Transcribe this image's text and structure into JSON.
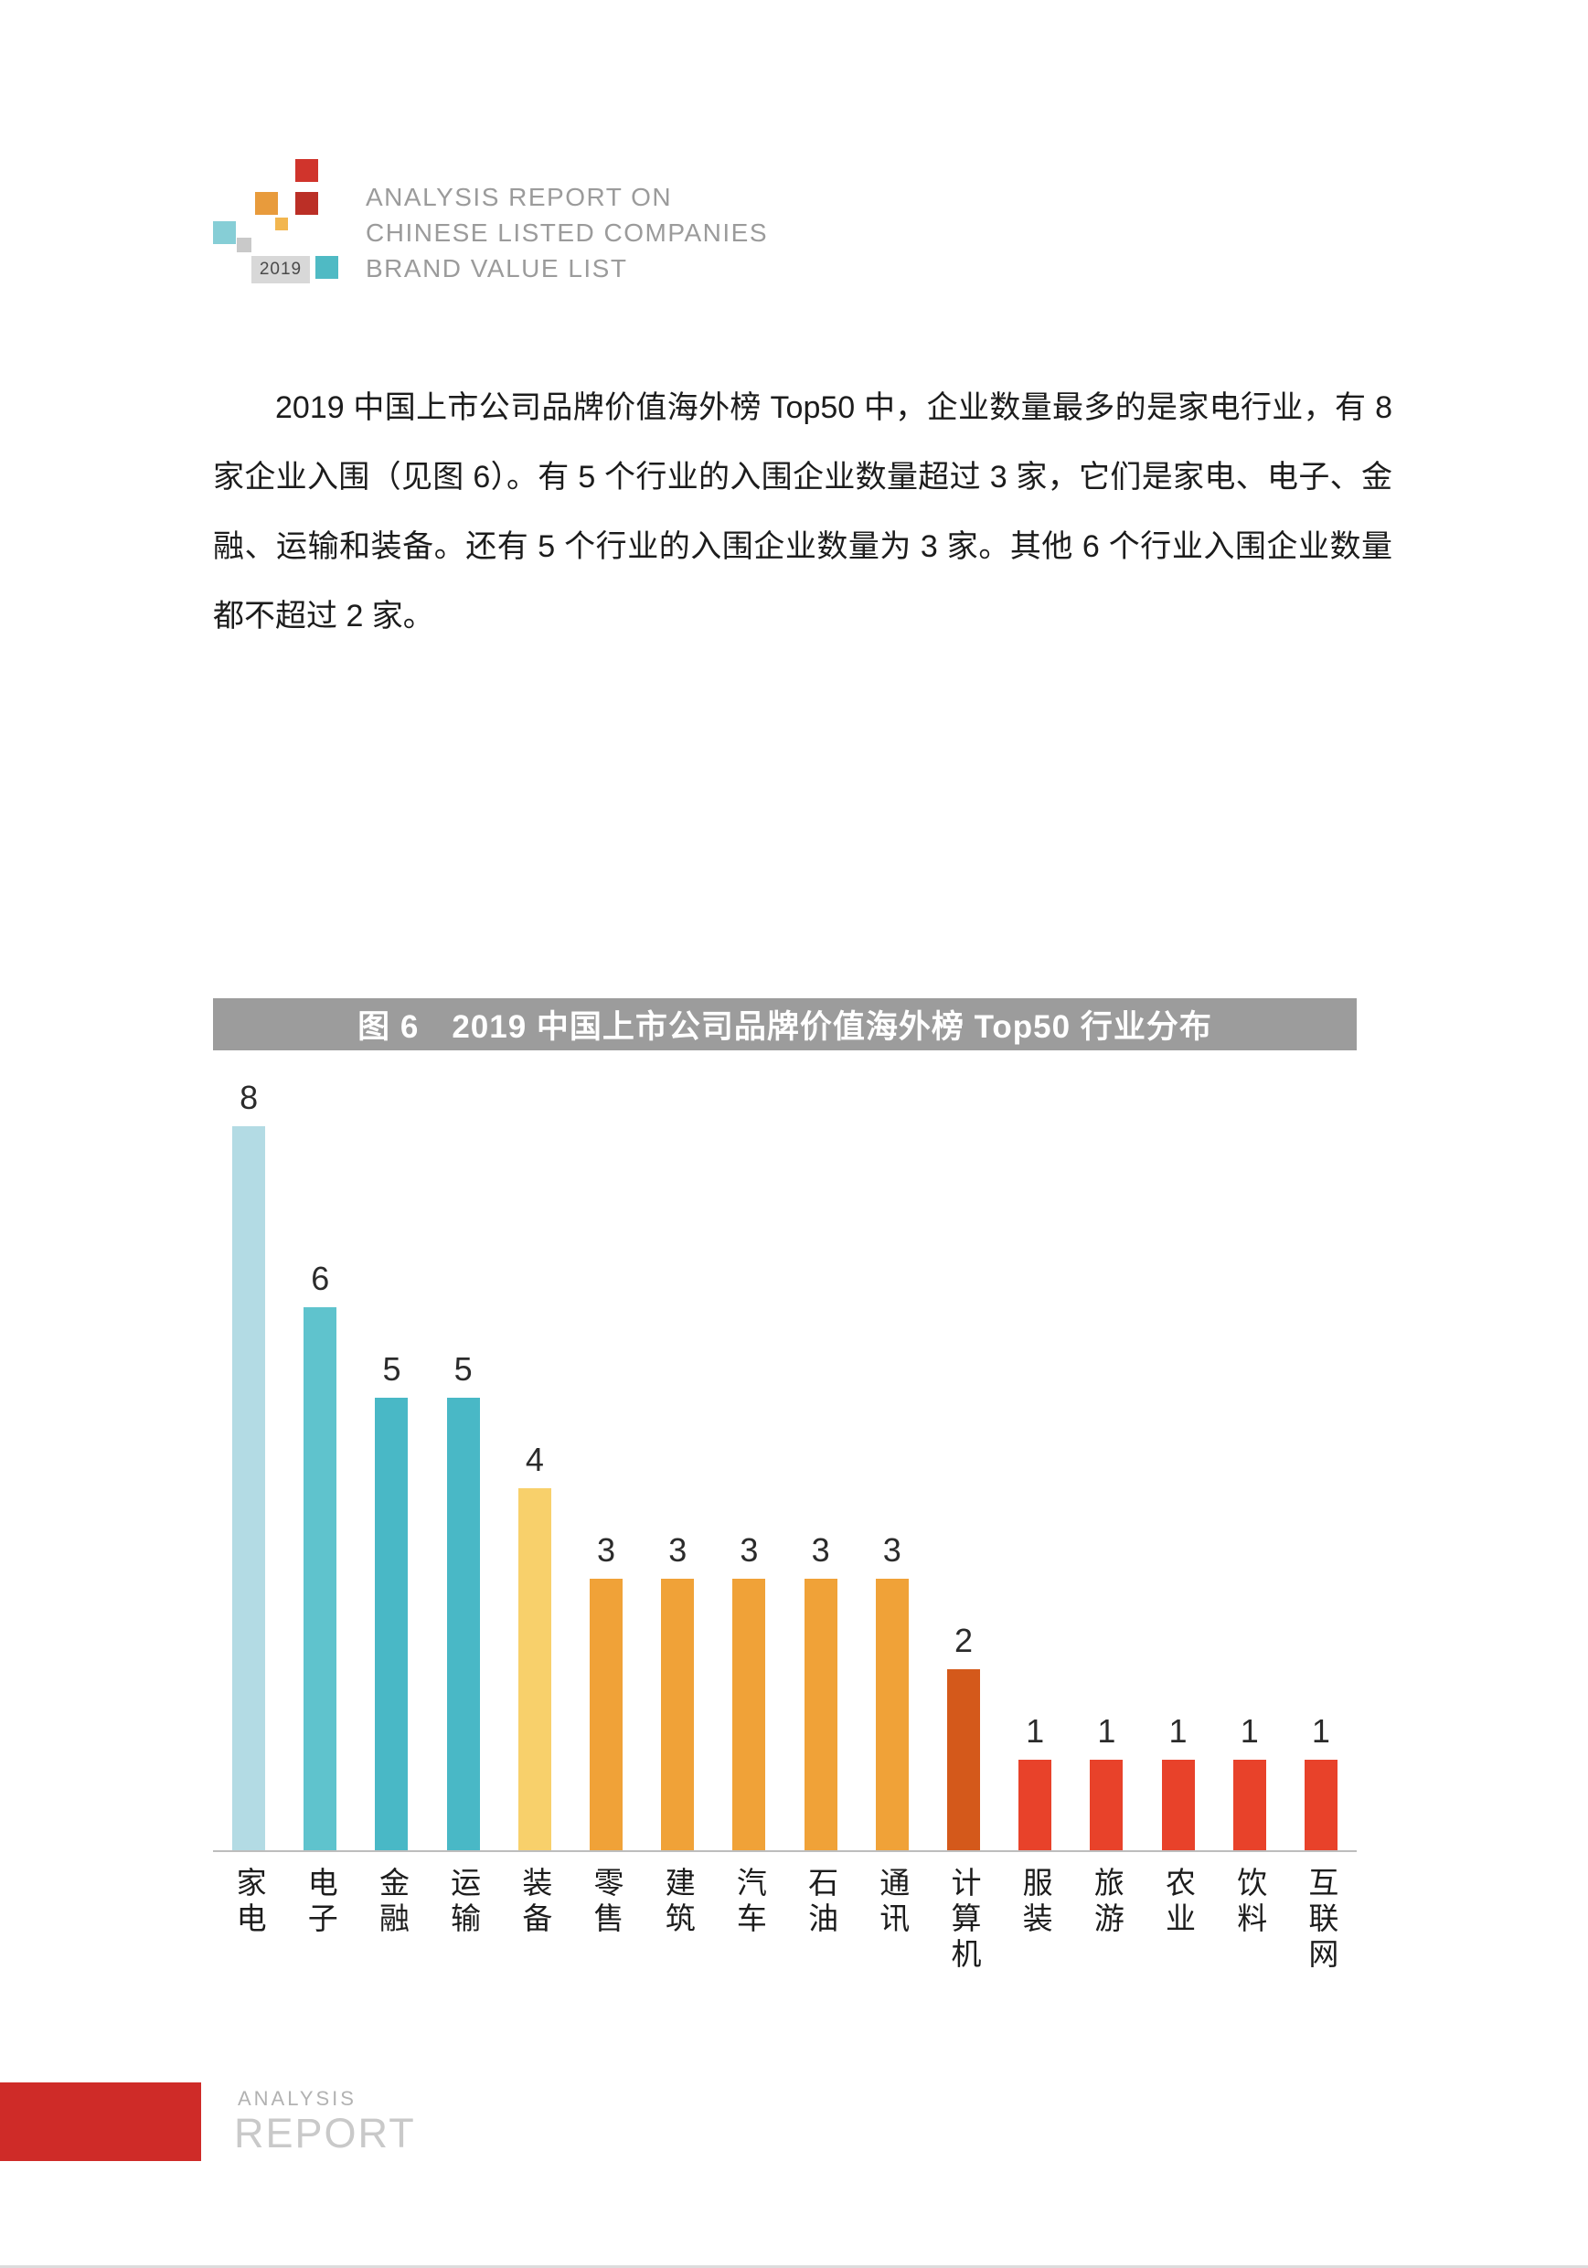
{
  "header": {
    "logo": {
      "year": "2019"
    },
    "title_lines": [
      "ANALYSIS REPORT ON",
      "CHINESE LISTED COMPANIES",
      "BRAND VALUE LIST"
    ]
  },
  "body": {
    "paragraph": "2019 中国上市公司品牌价值海外榜 Top50 中，企业数量最多的是家电行业，有 8 家企业入围（见图 6）。有 5 个行业的入围企业数量超过 3 家，它们是家电、电子、金融、运输和装备。还有 5 个行业的入围企业数量为 3 家。其他 6 个行业入围企业数量都不超过 2 家。"
  },
  "figure": {
    "title": "图 6　2019 中国上市公司品牌价值海外榜 Top50 行业分布",
    "title_bg": "#9c9c9c"
  },
  "chart_data": {
    "type": "bar",
    "title": "图 6　2019 中国上市公司品牌价值海外榜 Top50 行业分布",
    "categories": [
      "家电",
      "电子",
      "金融",
      "运输",
      "装备",
      "零售",
      "建筑",
      "汽车",
      "石油",
      "通讯",
      "计算机",
      "服装",
      "旅游",
      "农业",
      "饮料",
      "互联网"
    ],
    "values": [
      8,
      6,
      5,
      5,
      4,
      3,
      3,
      3,
      3,
      3,
      2,
      1,
      1,
      1,
      1,
      1
    ],
    "bar_colors": [
      "#b3dbe4",
      "#5fc3cd",
      "#49b8c6",
      "#49b8c6",
      "#f8d06b",
      "#f0a238",
      "#f0a238",
      "#f0a238",
      "#f0a238",
      "#f0a238",
      "#d4591b",
      "#e8422a",
      "#e8422a",
      "#e8422a",
      "#e8422a",
      "#e8422a"
    ],
    "xlabel": "",
    "ylabel": "",
    "ylim": [
      0,
      8
    ],
    "grid": false,
    "legend": false,
    "value_labels_shown": true
  },
  "footer": {
    "line1": "ANALYSIS",
    "line2": "REPORT",
    "accent_color": "#cf2b28"
  }
}
